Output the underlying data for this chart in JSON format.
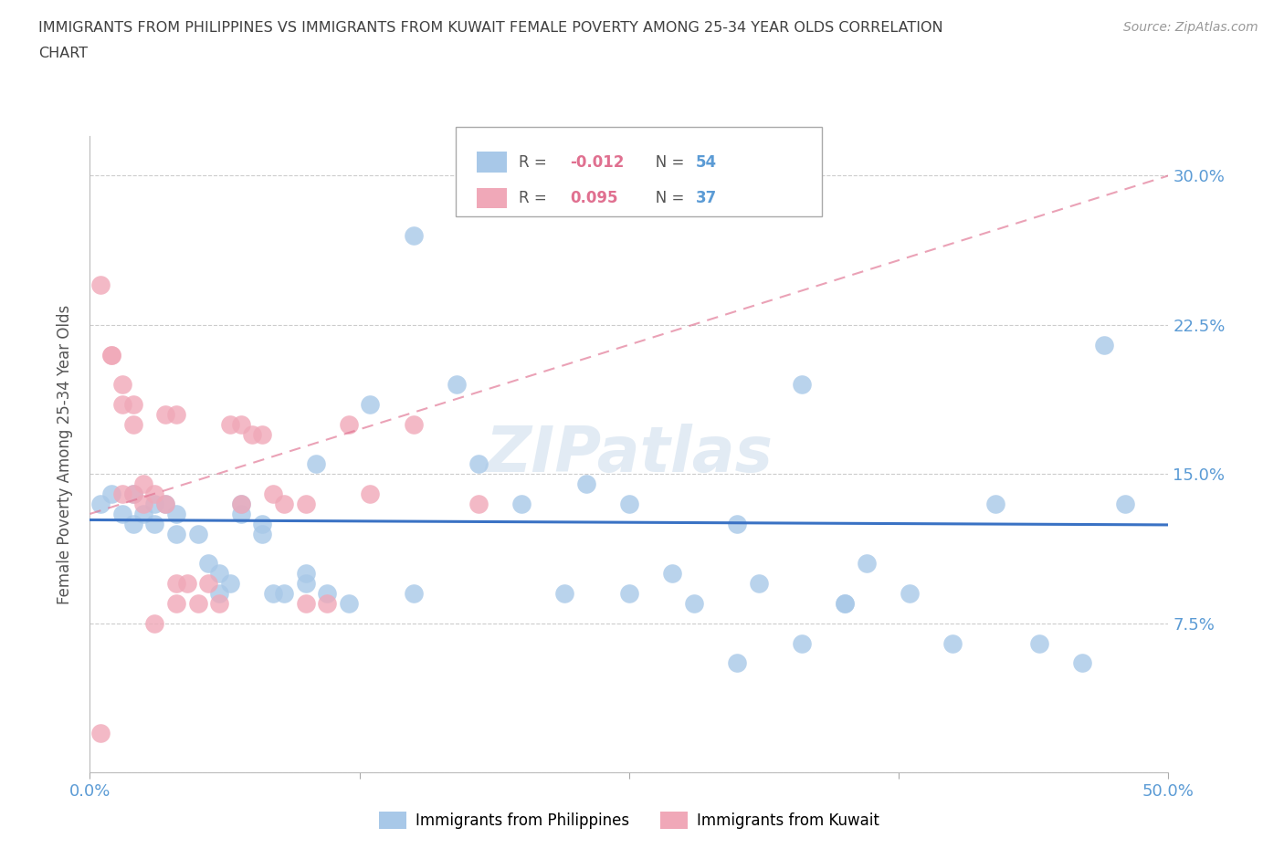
{
  "title_line1": "IMMIGRANTS FROM PHILIPPINES VS IMMIGRANTS FROM KUWAIT FEMALE POVERTY AMONG 25-34 YEAR OLDS CORRELATION",
  "title_line2": "CHART",
  "source": "Source: ZipAtlas.com",
  "ylabel": "Female Poverty Among 25-34 Year Olds",
  "xlim": [
    0.0,
    0.5
  ],
  "ylim": [
    0.0,
    0.32
  ],
  "yticks": [
    0.0,
    0.075,
    0.15,
    0.225,
    0.3
  ],
  "ytick_labels": [
    "",
    "7.5%",
    "15.0%",
    "22.5%",
    "30.0%"
  ],
  "xticks": [
    0.0,
    0.125,
    0.25,
    0.375,
    0.5
  ],
  "xtick_labels": [
    "0.0%",
    "",
    "",
    "",
    "50.0%"
  ],
  "color_philippines": "#a8c8e8",
  "color_kuwait": "#f0a8b8",
  "color_line_philippines": "#3a72c4",
  "color_line_kuwait": "#e07090",
  "color_axis_labels": "#5b9bd5",
  "color_title": "#404040",
  "watermark": "ZIPatlas",
  "philippines_x": [
    0.005,
    0.01,
    0.015,
    0.02,
    0.02,
    0.025,
    0.03,
    0.03,
    0.035,
    0.04,
    0.04,
    0.05,
    0.055,
    0.06,
    0.06,
    0.065,
    0.07,
    0.07,
    0.08,
    0.08,
    0.085,
    0.09,
    0.1,
    0.1,
    0.105,
    0.11,
    0.12,
    0.13,
    0.15,
    0.15,
    0.17,
    0.18,
    0.2,
    0.22,
    0.23,
    0.25,
    0.25,
    0.27,
    0.28,
    0.3,
    0.31,
    0.33,
    0.35,
    0.36,
    0.38,
    0.4,
    0.42,
    0.44,
    0.46,
    0.47,
    0.48,
    0.3,
    0.33,
    0.35
  ],
  "philippines_y": [
    0.135,
    0.14,
    0.13,
    0.14,
    0.125,
    0.13,
    0.135,
    0.125,
    0.135,
    0.13,
    0.12,
    0.12,
    0.105,
    0.1,
    0.09,
    0.095,
    0.135,
    0.13,
    0.125,
    0.12,
    0.09,
    0.09,
    0.1,
    0.095,
    0.155,
    0.09,
    0.085,
    0.185,
    0.09,
    0.27,
    0.195,
    0.155,
    0.135,
    0.09,
    0.145,
    0.09,
    0.135,
    0.1,
    0.085,
    0.055,
    0.095,
    0.195,
    0.085,
    0.105,
    0.09,
    0.065,
    0.135,
    0.065,
    0.055,
    0.215,
    0.135,
    0.125,
    0.065,
    0.085
  ],
  "kuwait_x": [
    0.005,
    0.005,
    0.01,
    0.01,
    0.015,
    0.015,
    0.015,
    0.02,
    0.02,
    0.02,
    0.025,
    0.025,
    0.03,
    0.03,
    0.035,
    0.035,
    0.04,
    0.04,
    0.04,
    0.045,
    0.05,
    0.055,
    0.06,
    0.065,
    0.07,
    0.07,
    0.075,
    0.08,
    0.085,
    0.09,
    0.1,
    0.1,
    0.11,
    0.12,
    0.13,
    0.15,
    0.18
  ],
  "kuwait_y": [
    0.245,
    0.02,
    0.21,
    0.21,
    0.195,
    0.185,
    0.14,
    0.185,
    0.175,
    0.14,
    0.145,
    0.135,
    0.14,
    0.075,
    0.135,
    0.18,
    0.095,
    0.085,
    0.18,
    0.095,
    0.085,
    0.095,
    0.085,
    0.175,
    0.175,
    0.135,
    0.17,
    0.17,
    0.14,
    0.135,
    0.135,
    0.085,
    0.085,
    0.175,
    0.14,
    0.175,
    0.135
  ],
  "r_philippines": -0.012,
  "n_philippines": 54,
  "r_kuwait": 0.095,
  "n_kuwait": 37,
  "ph_line_intercept": 0.127,
  "ph_line_slope": -0.005,
  "kw_line_x0": 0.0,
  "kw_line_y0": 0.13,
  "kw_line_x1": 0.5,
  "kw_line_y1": 0.3
}
